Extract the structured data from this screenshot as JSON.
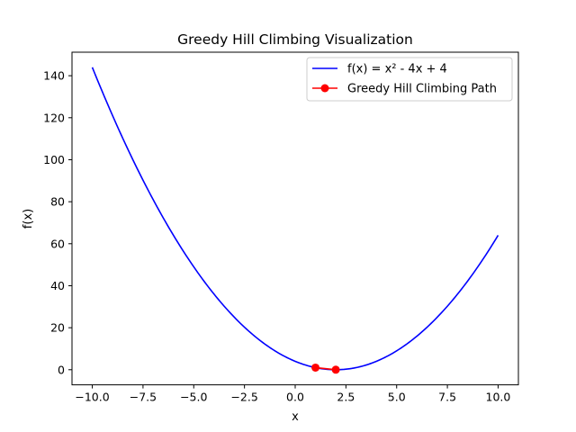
{
  "chart_data": {
    "type": "line",
    "title": "Greedy Hill Climbing Visualization",
    "xlabel": "x",
    "ylabel": "f(x)",
    "xlim": [
      -11,
      11
    ],
    "ylim": [
      -7.2,
      151.2
    ],
    "xticks": [
      -10.0,
      -7.5,
      -5.0,
      -2.5,
      0.0,
      2.5,
      5.0,
      7.5,
      10.0
    ],
    "xtick_labels": [
      "−10.0",
      "−7.5",
      "−5.0",
      "−2.5",
      "0.0",
      "2.5",
      "5.0",
      "7.5",
      "10.0"
    ],
    "yticks": [
      0,
      20,
      40,
      60,
      80,
      100,
      120,
      140
    ],
    "ytick_labels": [
      "0",
      "20",
      "40",
      "60",
      "80",
      "100",
      "120",
      "140"
    ],
    "grid": false,
    "legend_position": "top-right",
    "series": [
      {
        "name": "f(x) = x² - 4x + 4",
        "kind": "curve",
        "color": "#0000ff",
        "expression": "x^2 - 4x + 4",
        "x_range": [
          -10,
          10
        ]
      },
      {
        "name": "Greedy Hill Climbing Path",
        "kind": "line-markers",
        "color": "#ff0000",
        "points": [
          {
            "x": 1,
            "y": 1
          },
          {
            "x": 2,
            "y": 0
          }
        ]
      }
    ]
  }
}
